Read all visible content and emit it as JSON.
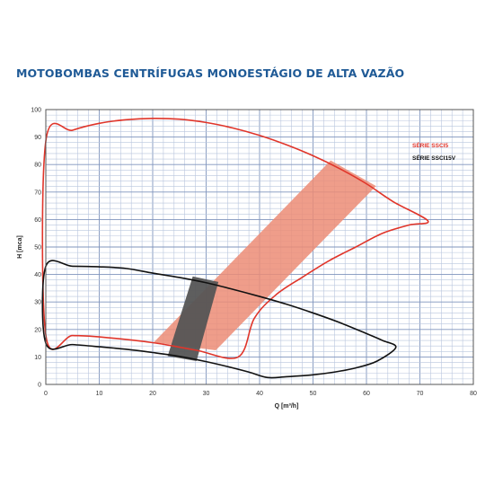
{
  "title": "MOTOBOMBAS CENTRÍFUGAS MONOESTÁGIO DE ALTA VAZÃO",
  "colors": {
    "title": "#1f5a96",
    "grid_major": "#7f95bd",
    "grid_minor": "#b9c6de",
    "red_series": "#e0352a",
    "red_band": "#ec8c76",
    "black_series": "#111111",
    "dark_band": "#555555"
  },
  "chart_data": {
    "type": "area",
    "xlabel": "Q [m³/h]",
    "ylabel": "H [mca]",
    "xlim": [
      0,
      80
    ],
    "ylim": [
      0,
      100
    ],
    "x_ticks": [
      0,
      10,
      20,
      30,
      40,
      50,
      60,
      70,
      80
    ],
    "y_ticks": [
      0,
      10,
      20,
      30,
      40,
      50,
      60,
      70,
      80,
      90,
      100
    ],
    "grid": true,
    "legend_position": "right",
    "series": [
      {
        "name": "SÉRIE SSCI5",
        "color": "#e0352a",
        "outline": [
          [
            0,
            88.5
          ],
          [
            5,
            92.5
          ],
          [
            10,
            95
          ],
          [
            15,
            96.3
          ],
          [
            20,
            96.8
          ],
          [
            25,
            96.5
          ],
          [
            30,
            95.3
          ],
          [
            35,
            93.3
          ],
          [
            40,
            90.6
          ],
          [
            45,
            87.2
          ],
          [
            50,
            83.2
          ],
          [
            55,
            78.5
          ],
          [
            60,
            73
          ],
          [
            65,
            66.5
          ],
          [
            71.5,
            59.5
          ],
          [
            68,
            58
          ],
          [
            63,
            55
          ],
          [
            58,
            50
          ],
          [
            53,
            45
          ],
          [
            48,
            39
          ],
          [
            43,
            32.5
          ],
          [
            39,
            24
          ],
          [
            36,
            10
          ],
          [
            28,
            12.5
          ],
          [
            20,
            15.2
          ],
          [
            10,
            17.3
          ],
          [
            5,
            17.8
          ],
          [
            0,
            18
          ]
        ]
      },
      {
        "name": "SÉRIE SSCI15V",
        "color": "#111111",
        "outline": [
          [
            0,
            43
          ],
          [
            5,
            43
          ],
          [
            10,
            42.8
          ],
          [
            15,
            42.2
          ],
          [
            20,
            40.5
          ],
          [
            25,
            38.9
          ],
          [
            30,
            37
          ],
          [
            35,
            34.6
          ],
          [
            40,
            32
          ],
          [
            45,
            29.2
          ],
          [
            50,
            26
          ],
          [
            55,
            22.5
          ],
          [
            60,
            18.5
          ],
          [
            63,
            16
          ],
          [
            65.5,
            13.5
          ],
          [
            62,
            8.5
          ],
          [
            58,
            6
          ],
          [
            54,
            4.5
          ],
          [
            50,
            3.5
          ],
          [
            45,
            2.8
          ],
          [
            41.5,
            2.5
          ],
          [
            38,
            4.5
          ],
          [
            34,
            6.5
          ],
          [
            30,
            8.3
          ],
          [
            25,
            10.2
          ],
          [
            20,
            11.6
          ],
          [
            15,
            12.8
          ],
          [
            10,
            13.7
          ],
          [
            5,
            14.5
          ],
          [
            0,
            15
          ]
        ]
      }
    ],
    "bands": [
      {
        "series": "SÉRIE SSCI5",
        "polygon": [
          [
            20.2,
            15.3
          ],
          [
            31.8,
            12.4
          ],
          [
            61.8,
            72.2
          ],
          [
            53.3,
            81.5
          ]
        ]
      },
      {
        "series": "SÉRIE SSCI15V",
        "polygon": [
          [
            22.8,
            10.3
          ],
          [
            28.2,
            8.5
          ],
          [
            32.3,
            37.3
          ],
          [
            27.5,
            39.3
          ]
        ]
      }
    ]
  }
}
